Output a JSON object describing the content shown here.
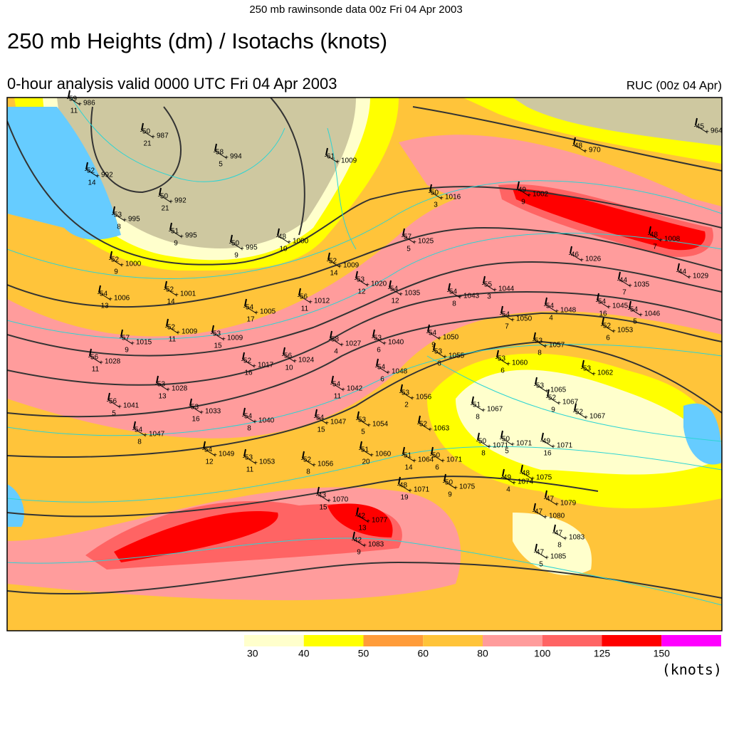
{
  "header": {
    "top_line": "250 mb  rawinsonde data 00z Fri 04 Apr 2003",
    "title": "250 mb Heights (dm) / Isotachs (knots)",
    "subtitle": "0-hour analysis valid 0000 UTC Fri 04 Apr 2003",
    "model": "RUC (00z 04 Apr)"
  },
  "legend": {
    "levels": [
      30,
      40,
      50,
      60,
      80,
      100,
      125,
      150
    ],
    "colors": [
      "#ffffcc",
      "#ffff00",
      "#ff9c3a",
      "#ffc43a",
      "#ff9c9c",
      "#ff6464",
      "#ff0000",
      "#ff00ff"
    ],
    "unit": "(knots)"
  },
  "stations": [
    {
      "temp": -59,
      "height": 986,
      "code": 11
    },
    {
      "temp": -50,
      "height": 987,
      "code": 21
    },
    {
      "temp": -58,
      "height": 994,
      "code": 5
    },
    {
      "temp": -61,
      "height": 1009
    },
    {
      "temp": -52,
      "height": 992,
      "code": 14
    },
    {
      "temp": -50,
      "height": 992,
      "code": 21
    },
    {
      "temp": -53,
      "height": 995,
      "code": 8
    },
    {
      "temp": -51,
      "height": 995,
      "code": 9
    },
    {
      "temp": -50,
      "height": 995,
      "code": 9
    },
    {
      "temp": -48,
      "height": 1000,
      "code": 10
    },
    {
      "temp": -52,
      "height": 1000,
      "code": 9
    },
    {
      "temp": -50,
      "height": 1016,
      "code": 3
    },
    {
      "temp": -49,
      "height": 1002,
      "code": 9
    },
    {
      "temp": -48,
      "height": 970
    },
    {
      "temp": -45,
      "height": 964
    },
    {
      "temp": -57,
      "height": 1025,
      "code": 5
    },
    {
      "temp": -52,
      "height": 1009,
      "code": 14
    },
    {
      "temp": -53,
      "height": 1020,
      "code": 12
    },
    {
      "temp": -54,
      "height": 1035,
      "code": 12
    },
    {
      "temp": -54,
      "height": 1006,
      "code": 13
    },
    {
      "temp": -52,
      "height": 1001,
      "code": 14
    },
    {
      "temp": -54,
      "height": 1005,
      "code": 17
    },
    {
      "temp": -56,
      "height": 1012,
      "code": 11
    },
    {
      "temp": -54,
      "height": 1043,
      "code": 8
    },
    {
      "temp": -55,
      "height": 1044,
      "code": 3
    },
    {
      "temp": -46,
      "height": 1026
    },
    {
      "temp": -48,
      "height": 1008,
      "code": 7
    },
    {
      "temp": -44,
      "height": 1029
    },
    {
      "temp": -44,
      "height": 1035,
      "code": 7
    },
    {
      "temp": -54,
      "height": 1050,
      "code": 7
    },
    {
      "temp": -54,
      "height": 1048,
      "code": 4
    },
    {
      "temp": -54,
      "height": 1045,
      "code": 16
    },
    {
      "temp": -54,
      "height": 1046,
      "code": 5
    },
    {
      "temp": -52,
      "height": 1053,
      "code": 6
    },
    {
      "temp": -52,
      "height": 1009,
      "code": 11
    },
    {
      "temp": -53,
      "height": 1009,
      "code": 15
    },
    {
      "temp": -57,
      "height": 1015,
      "code": 9
    },
    {
      "temp": -58,
      "height": 1027,
      "code": 4
    },
    {
      "temp": -53,
      "height": 1040,
      "code": 6
    },
    {
      "temp": -54,
      "height": 1050,
      "code": 9
    },
    {
      "temp": -53,
      "height": 1057,
      "code": 8
    },
    {
      "temp": -53,
      "height": 1055,
      "code": 6
    },
    {
      "temp": -56,
      "height": 1028,
      "code": 11
    },
    {
      "temp": -52,
      "height": 1017,
      "code": 16
    },
    {
      "temp": -56,
      "height": 1024,
      "code": 10
    },
    {
      "temp": -54,
      "height": 1048,
      "code": 6
    },
    {
      "temp": -53,
      "height": 1060,
      "code": 6
    },
    {
      "temp": -53,
      "height": 1062
    },
    {
      "temp": -53,
      "height": 1028,
      "code": 13
    },
    {
      "temp": -54,
      "height": 1042,
      "code": 11
    },
    {
      "temp": -53,
      "height": 1065
    },
    {
      "temp": -56,
      "height": 1041,
      "code": 5
    },
    {
      "temp": -53,
      "height": 1033,
      "code": 16
    },
    {
      "temp": -53,
      "height": 1056,
      "code": 2
    },
    {
      "temp": -52,
      "height": 1067,
      "code": 9
    },
    {
      "temp": -54,
      "height": 1040,
      "code": 8
    },
    {
      "temp": -54,
      "height": 1047,
      "code": 15
    },
    {
      "temp": -53,
      "height": 1054,
      "code": 5
    },
    {
      "temp": -51,
      "height": 1067,
      "code": 8
    },
    {
      "temp": -52,
      "height": 1067
    },
    {
      "temp": -54,
      "height": 1047,
      "code": 8
    },
    {
      "temp": -52,
      "height": 1063
    },
    {
      "temp": -54,
      "height": 1049,
      "code": 12
    },
    {
      "temp": -53,
      "height": 1053,
      "code": 11
    },
    {
      "temp": -52,
      "height": 1056,
      "code": 8
    },
    {
      "temp": -51,
      "height": 1060,
      "code": 20
    },
    {
      "temp": -51,
      "height": 1064,
      "code": 14
    },
    {
      "temp": -50,
      "height": 1071,
      "code": 6
    },
    {
      "temp": -50,
      "height": 1071,
      "code": 8
    },
    {
      "temp": -50,
      "height": 1071,
      "code": 5
    },
    {
      "temp": -49,
      "height": 1071,
      "code": 16
    },
    {
      "temp": -48,
      "height": 1071,
      "code": 19
    },
    {
      "temp": -50,
      "height": 1075,
      "code": 9
    },
    {
      "temp": -49,
      "height": 1074,
      "code": 4
    },
    {
      "temp": -48,
      "height": 1075
    },
    {
      "temp": -43,
      "height": 1070,
      "code": 15
    },
    {
      "temp": -42,
      "height": 1077,
      "code": 13
    },
    {
      "temp": -47,
      "height": 1079
    },
    {
      "temp": -47,
      "height": 1080
    },
    {
      "temp": -42,
      "height": 1083,
      "code": 9
    },
    {
      "temp": -47,
      "height": 1083,
      "code": 8
    },
    {
      "temp": -47,
      "height": 1085,
      "code": 5
    }
  ]
}
